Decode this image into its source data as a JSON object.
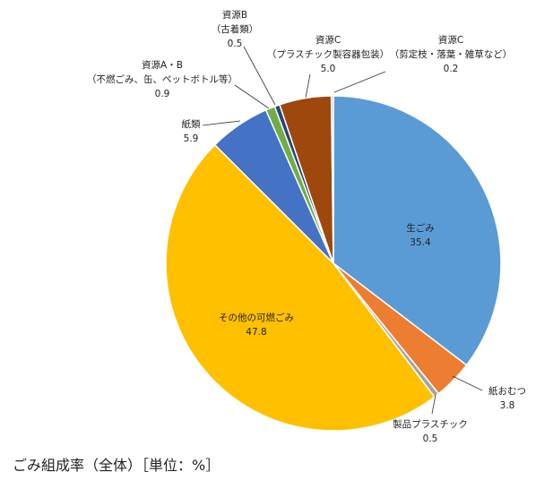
{
  "chart_data": {
    "type": "pie",
    "slices": [
      {
        "label": "生ごみ",
        "value_text": "35.4",
        "value": 35.4,
        "color": "#5B9BD5"
      },
      {
        "label": "紙おむつ",
        "value_text": "3.8",
        "value": 3.8,
        "color": "#ED7D31"
      },
      {
        "label": "製品プラスチック",
        "value_text": "0.5",
        "value": 0.5,
        "color": "#A5A5A5"
      },
      {
        "label": "その他の可燃ごみ",
        "value_text": "47.8",
        "value": 47.8,
        "color": "#FFC000"
      },
      {
        "label": "紙類",
        "value_text": "5.9",
        "value": 5.9,
        "color": "#4472C4"
      },
      {
        "label": "資源A・B",
        "sublabel": "（不燃ごみ、缶、ペットボトル等）",
        "value_text": "0.9",
        "value": 0.9,
        "color": "#70AD47"
      },
      {
        "label": "資源B",
        "sublabel": "（古着類）",
        "value_text": "0.5",
        "value": 0.5,
        "color": "#264478"
      },
      {
        "label": "資源C",
        "sublabel": "（プラスチック製容器包装）",
        "value_text": "5.0",
        "value": 5.0,
        "color": "#9E480E"
      },
      {
        "label": "資源C",
        "sublabel": "（剪定枝・落葉・雑草など）",
        "value_text": "0.2",
        "value": 0.2,
        "color": "#BFBFBF"
      }
    ],
    "start": "12 o'clock",
    "direction": "clockwise"
  },
  "caption": "ごみ組成率（全体）［単位：%］"
}
